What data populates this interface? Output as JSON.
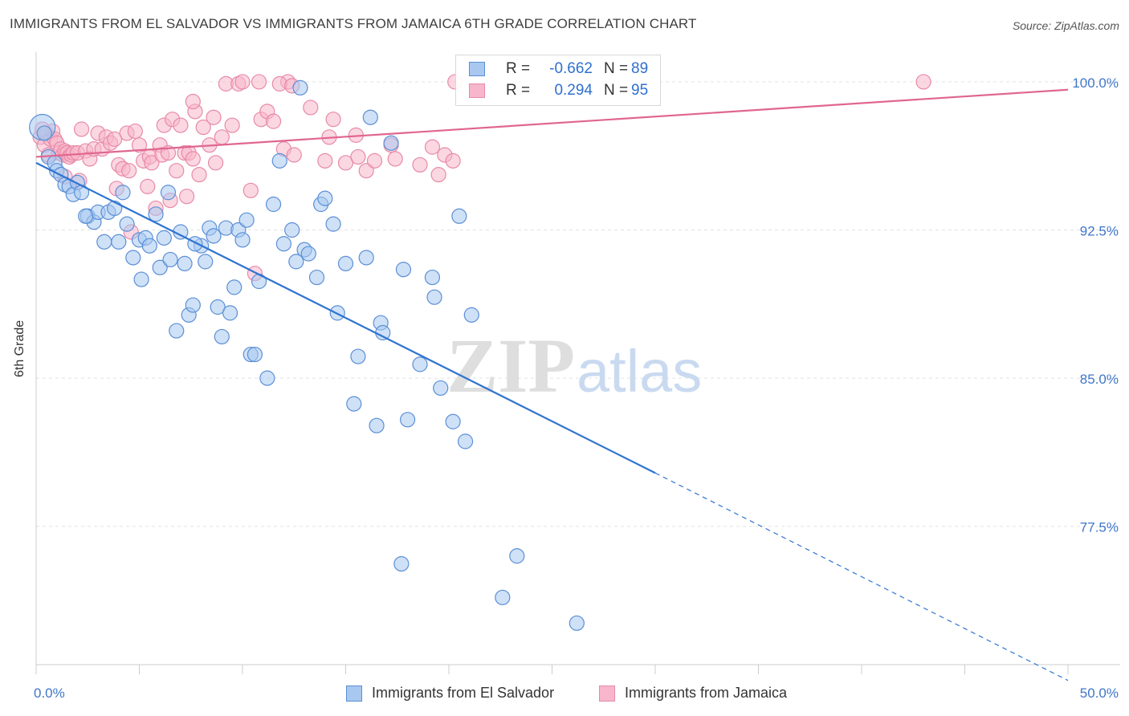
{
  "header": {
    "title": "IMMIGRANTS FROM EL SALVADOR VS IMMIGRANTS FROM JAMAICA 6TH GRADE CORRELATION CHART",
    "source": "Source: ZipAtlas.com"
  },
  "watermark": {
    "zip": "ZIP",
    "atlas": "atlas"
  },
  "legend": {
    "rows": [
      {
        "r_label": "R =",
        "r_value": "-0.662",
        "n_label": "N =",
        "n_value": "89"
      },
      {
        "r_label": "R =",
        "r_value": "0.294",
        "n_label": "N =",
        "n_value": "95"
      }
    ]
  },
  "bottom_legend": [
    "Immigrants from El Salvador",
    "Immigrants from Jamaica"
  ],
  "colors": {
    "series_a_fill": "#a8c8f0",
    "series_a_stroke": "#5b8fd6",
    "series_a_line": "#2f74d0",
    "series_b_fill": "#f7b6cb",
    "series_b_stroke": "#e88aa8",
    "series_b_line": "#e06690",
    "tick_label": "#3f76c8"
  },
  "chart_data": {
    "type": "scatter",
    "title": "IMMIGRANTS FROM EL SALVADOR VS IMMIGRANTS FROM JAMAICA 6TH GRADE CORRELATION CHART",
    "xlabel": "",
    "ylabel": "6th Grade",
    "xlim": [
      0,
      50
    ],
    "ylim": [
      70.5,
      101.5
    ],
    "x_tick_labels": [
      "0.0%",
      "50.0%"
    ],
    "y_ticks": [
      100.0,
      92.5,
      85.0,
      77.5
    ],
    "y_tick_labels": [
      "100.0%",
      "92.5%",
      "85.0%",
      "77.5%"
    ],
    "grid": true,
    "legend_position": "top-center",
    "series": [
      {
        "name": "Immigrants from El Salvador",
        "color": "#5b8fd6",
        "r": -0.662,
        "n": 89,
        "trend": {
          "x0": 0,
          "y0": 95.9,
          "x1": 30,
          "y1": 80.2,
          "dashed_to_x": 50,
          "dashed_to_y": 69.7
        },
        "points": [
          [
            0.3,
            97.7
          ],
          [
            0.6,
            96.2
          ],
          [
            0.9,
            95.9
          ],
          [
            1.0,
            95.5
          ],
          [
            1.2,
            95.3
          ],
          [
            1.4,
            94.8
          ],
          [
            1.6,
            94.7
          ],
          [
            1.8,
            94.3
          ],
          [
            2.0,
            94.9
          ],
          [
            2.2,
            94.4
          ],
          [
            2.5,
            93.2
          ],
          [
            2.8,
            92.9
          ],
          [
            3.0,
            93.4
          ],
          [
            3.3,
            91.9
          ],
          [
            3.5,
            93.4
          ],
          [
            3.8,
            93.6
          ],
          [
            4.0,
            91.9
          ],
          [
            4.2,
            94.4
          ],
          [
            4.4,
            92.8
          ],
          [
            4.7,
            91.1
          ],
          [
            5.0,
            92.0
          ],
          [
            5.1,
            90.0
          ],
          [
            5.3,
            92.1
          ],
          [
            5.5,
            91.7
          ],
          [
            5.8,
            93.3
          ],
          [
            6.0,
            90.6
          ],
          [
            6.2,
            92.1
          ],
          [
            6.4,
            94.4
          ],
          [
            6.5,
            91.0
          ],
          [
            6.8,
            87.4
          ],
          [
            7.0,
            92.4
          ],
          [
            7.2,
            90.8
          ],
          [
            7.4,
            88.2
          ],
          [
            7.6,
            88.7
          ],
          [
            8.0,
            91.7
          ],
          [
            8.2,
            90.9
          ],
          [
            8.4,
            92.6
          ],
          [
            8.6,
            92.2
          ],
          [
            8.8,
            88.6
          ],
          [
            9.0,
            87.1
          ],
          [
            9.2,
            92.6
          ],
          [
            9.4,
            88.3
          ],
          [
            9.6,
            89.6
          ],
          [
            9.8,
            92.5
          ],
          [
            10.0,
            92.0
          ],
          [
            10.2,
            93.0
          ],
          [
            10.4,
            86.2
          ],
          [
            10.6,
            86.2
          ],
          [
            10.8,
            89.9
          ],
          [
            11.2,
            85.0
          ],
          [
            11.5,
            93.8
          ],
          [
            11.8,
            96.0
          ],
          [
            12.0,
            91.8
          ],
          [
            12.4,
            92.5
          ],
          [
            12.6,
            90.9
          ],
          [
            13.0,
            91.5
          ],
          [
            13.2,
            91.3
          ],
          [
            13.6,
            90.1
          ],
          [
            13.8,
            93.8
          ],
          [
            14.0,
            94.1
          ],
          [
            14.4,
            92.8
          ],
          [
            14.6,
            88.3
          ],
          [
            15.0,
            90.8
          ],
          [
            15.4,
            83.7
          ],
          [
            15.6,
            86.1
          ],
          [
            16.0,
            91.1
          ],
          [
            16.2,
            98.2
          ],
          [
            16.5,
            82.6
          ],
          [
            16.7,
            87.8
          ],
          [
            16.8,
            87.3
          ],
          [
            17.2,
            96.9
          ],
          [
            17.8,
            90.5
          ],
          [
            18.6,
            85.7
          ],
          [
            19.2,
            90.1
          ],
          [
            19.3,
            89.1
          ],
          [
            19.6,
            84.5
          ],
          [
            20.2,
            82.8
          ],
          [
            20.5,
            93.2
          ],
          [
            20.8,
            81.8
          ],
          [
            21.1,
            88.2
          ],
          [
            18.0,
            82.9
          ],
          [
            17.7,
            75.6
          ],
          [
            22.6,
            73.9
          ],
          [
            23.3,
            76.0
          ],
          [
            26.2,
            72.6
          ],
          [
            12.8,
            99.7
          ],
          [
            0.4,
            97.4
          ],
          [
            2.4,
            93.2
          ],
          [
            7.7,
            91.8
          ]
        ]
      },
      {
        "name": "Immigrants from Jamaica",
        "color": "#e88aa8",
        "r": 0.294,
        "n": 95,
        "trend": {
          "x0": 0,
          "y0": 96.2,
          "x1": 50,
          "y1": 99.6
        },
        "points": [
          [
            0.2,
            97.2
          ],
          [
            0.4,
            96.8
          ],
          [
            0.5,
            97.4
          ],
          [
            0.6,
            96.3
          ],
          [
            0.7,
            97.1
          ],
          [
            0.8,
            97.5
          ],
          [
            0.9,
            97.1
          ],
          [
            1.0,
            96.9
          ],
          [
            1.1,
            96.4
          ],
          [
            1.2,
            96.6
          ],
          [
            1.3,
            96.3
          ],
          [
            1.4,
            96.5
          ],
          [
            1.5,
            96.4
          ],
          [
            1.6,
            96.2
          ],
          [
            1.7,
            96.3
          ],
          [
            1.8,
            96.4
          ],
          [
            2.0,
            96.4
          ],
          [
            2.1,
            95.0
          ],
          [
            2.2,
            97.6
          ],
          [
            2.4,
            96.5
          ],
          [
            2.6,
            96.1
          ],
          [
            2.8,
            96.6
          ],
          [
            3.0,
            97.4
          ],
          [
            3.2,
            96.6
          ],
          [
            3.4,
            97.2
          ],
          [
            3.6,
            96.9
          ],
          [
            3.8,
            97.1
          ],
          [
            4.0,
            95.8
          ],
          [
            4.2,
            95.6
          ],
          [
            4.4,
            97.4
          ],
          [
            4.6,
            92.4
          ],
          [
            4.8,
            97.5
          ],
          [
            5.0,
            96.8
          ],
          [
            5.2,
            96.0
          ],
          [
            5.4,
            94.7
          ],
          [
            5.5,
            96.2
          ],
          [
            5.6,
            95.9
          ],
          [
            5.8,
            93.6
          ],
          [
            6.0,
            96.8
          ],
          [
            6.1,
            96.3
          ],
          [
            6.2,
            97.8
          ],
          [
            6.4,
            96.4
          ],
          [
            6.5,
            94.0
          ],
          [
            6.6,
            98.1
          ],
          [
            6.8,
            95.5
          ],
          [
            7.0,
            97.8
          ],
          [
            7.2,
            96.4
          ],
          [
            7.3,
            94.2
          ],
          [
            7.4,
            96.4
          ],
          [
            7.6,
            96.1
          ],
          [
            7.7,
            98.5
          ],
          [
            7.9,
            95.3
          ],
          [
            8.1,
            97.7
          ],
          [
            8.4,
            96.8
          ],
          [
            8.6,
            98.2
          ],
          [
            8.7,
            95.9
          ],
          [
            9.0,
            97.2
          ],
          [
            9.2,
            99.9
          ],
          [
            9.5,
            97.8
          ],
          [
            9.8,
            99.9
          ],
          [
            10.0,
            100.0
          ],
          [
            10.4,
            94.5
          ],
          [
            10.6,
            90.3
          ],
          [
            10.9,
            98.1
          ],
          [
            11.2,
            98.5
          ],
          [
            11.5,
            98.0
          ],
          [
            12.0,
            96.6
          ],
          [
            12.2,
            100.0
          ],
          [
            12.5,
            96.3
          ],
          [
            14.0,
            96.0
          ],
          [
            14.2,
            97.2
          ],
          [
            14.4,
            98.1
          ],
          [
            15.0,
            95.9
          ],
          [
            15.5,
            97.3
          ],
          [
            15.6,
            96.2
          ],
          [
            16.0,
            95.5
          ],
          [
            16.4,
            96.0
          ],
          [
            17.2,
            96.8
          ],
          [
            17.4,
            96.1
          ],
          [
            18.6,
            95.8
          ],
          [
            19.2,
            96.7
          ],
          [
            19.5,
            95.3
          ],
          [
            19.8,
            96.3
          ],
          [
            20.2,
            96.0
          ],
          [
            20.3,
            100.0
          ],
          [
            11.8,
            99.9
          ],
          [
            12.4,
            99.8
          ],
          [
            43.0,
            100.0
          ],
          [
            10.8,
            100.0
          ],
          [
            0.3,
            97.6
          ],
          [
            1.4,
            95.2
          ],
          [
            3.9,
            94.6
          ],
          [
            4.5,
            95.5
          ],
          [
            7.6,
            99.0
          ],
          [
            13.3,
            98.7
          ]
        ]
      }
    ]
  }
}
